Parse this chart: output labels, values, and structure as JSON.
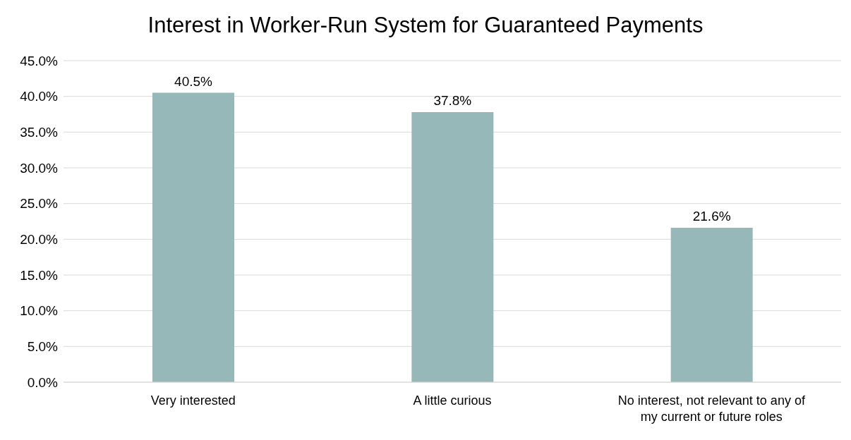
{
  "chart_data": {
    "type": "bar",
    "title": "Interest in Worker-Run System for Guaranteed Payments",
    "categories": [
      "Very interested",
      "A little curious",
      "No interest, not relevant to any of my current or future roles"
    ],
    "values": [
      40.5,
      37.8,
      21.6
    ],
    "color": "#96b8b9",
    "value_labels": [
      "40.5%",
      "37.8%",
      "21.6%"
    ],
    "ylim": [
      0,
      45
    ],
    "yticks": [
      {
        "value": 0,
        "label": "0.0%"
      },
      {
        "value": 5,
        "label": "5.0%"
      },
      {
        "value": 10,
        "label": "10.0%"
      },
      {
        "value": 15,
        "label": "15.0%"
      },
      {
        "value": 20,
        "label": "20.0%"
      },
      {
        "value": 25,
        "label": "25.0%"
      },
      {
        "value": 30,
        "label": "30.0%"
      },
      {
        "value": 35,
        "label": "35.0%"
      },
      {
        "value": 40,
        "label": "40.0%"
      },
      {
        "value": 45,
        "label": "45.0%"
      }
    ],
    "grid": "y",
    "legend": false
  }
}
